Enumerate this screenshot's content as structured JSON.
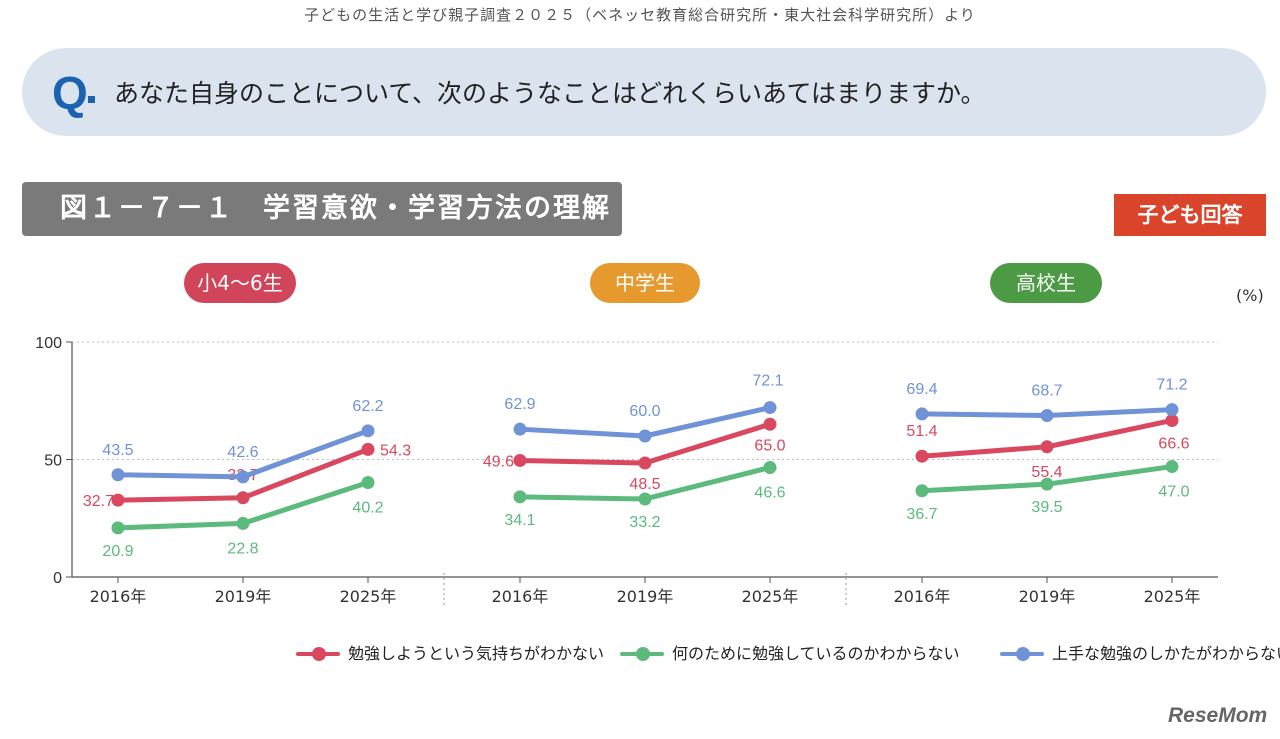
{
  "source": "子どもの生活と学び親子調査２０２５（ベネッセ教育総合研究所・東大社会科学研究所）より",
  "question": {
    "mark": "Q",
    "text": "あなた自身のことについて、次のようなことはどれくらいあてはまりますか。"
  },
  "figure_title": "図１－７－１　学習意欲・学習方法の理解",
  "respondent_badge": "子ども回答",
  "unit": "(%)",
  "logo": "ReseMom",
  "colors": {
    "red": "#d9485f",
    "green": "#5cba7d",
    "blue": "#6f93d6",
    "pill_elementary": "#d0455a",
    "pill_junior": "#e69a2e",
    "pill_high": "#4d9a45"
  },
  "chart_data": {
    "type": "line",
    "y_ticks": [
      "100",
      "50",
      "0"
    ],
    "ylim": [
      0,
      100
    ],
    "grid": "dotted at 50 and 100",
    "legend_position": "bottom",
    "groups": [
      {
        "label": "小4〜6生",
        "x": [
          "2016年",
          "2019年",
          "2025年"
        ],
        "series": [
          {
            "name": "勉強しようという気持ちがわかない",
            "color": "red",
            "values": [
              32.7,
              33.7,
              54.3
            ],
            "labels": [
              "32.7",
              "33.7",
              "54.3"
            ]
          },
          {
            "name": "何のために勉強しているのかわからない",
            "color": "green",
            "values": [
              20.9,
              22.8,
              40.2
            ],
            "labels": [
              "20.9",
              "22.8",
              "40.2"
            ]
          },
          {
            "name": "上手な勉強のしかたがわからない",
            "color": "blue",
            "values": [
              43.5,
              42.6,
              62.2
            ],
            "labels": [
              "43.5",
              "42.6",
              "62.2"
            ]
          }
        ]
      },
      {
        "label": "中学生",
        "x": [
          "2016年",
          "2019年",
          "2025年"
        ],
        "series": [
          {
            "name": "勉強しようという気持ちがわかない",
            "color": "red",
            "values": [
              49.6,
              48.5,
              65.0
            ],
            "labels": [
              "49.6",
              "48.5",
              "65.0"
            ]
          },
          {
            "name": "何のために勉強しているのかわからない",
            "color": "green",
            "values": [
              34.1,
              33.2,
              46.6
            ],
            "labels": [
              "34.1",
              "33.2",
              "46.6"
            ]
          },
          {
            "name": "上手な勉強のしかたがわからない",
            "color": "blue",
            "values": [
              62.9,
              60.0,
              72.1
            ],
            "labels": [
              "62.9",
              "60.0",
              "72.1"
            ]
          }
        ]
      },
      {
        "label": "高校生",
        "x": [
          "2016年",
          "2019年",
          "2025年"
        ],
        "series": [
          {
            "name": "勉強しようという気持ちがわかない",
            "color": "red",
            "values": [
              51.4,
              55.4,
              66.6
            ],
            "labels": [
              "51.4",
              "55.4",
              "66.6"
            ]
          },
          {
            "name": "何のために勉強しているのかわからない",
            "color": "green",
            "values": [
              36.7,
              39.5,
              47.0
            ],
            "labels": [
              "36.7",
              "39.5",
              "47.0"
            ]
          },
          {
            "name": "上手な勉強のしかたがわからない",
            "color": "blue",
            "values": [
              69.4,
              68.7,
              71.2
            ],
            "labels": [
              "69.4",
              "68.7",
              "71.2"
            ]
          }
        ]
      }
    ],
    "legend": [
      {
        "label": "勉強しようという気持ちがわかない",
        "color": "red"
      },
      {
        "label": "何のために勉強しているのかわからない",
        "color": "green"
      },
      {
        "label": "上手な勉強のしかたがわからない",
        "color": "blue"
      }
    ]
  }
}
